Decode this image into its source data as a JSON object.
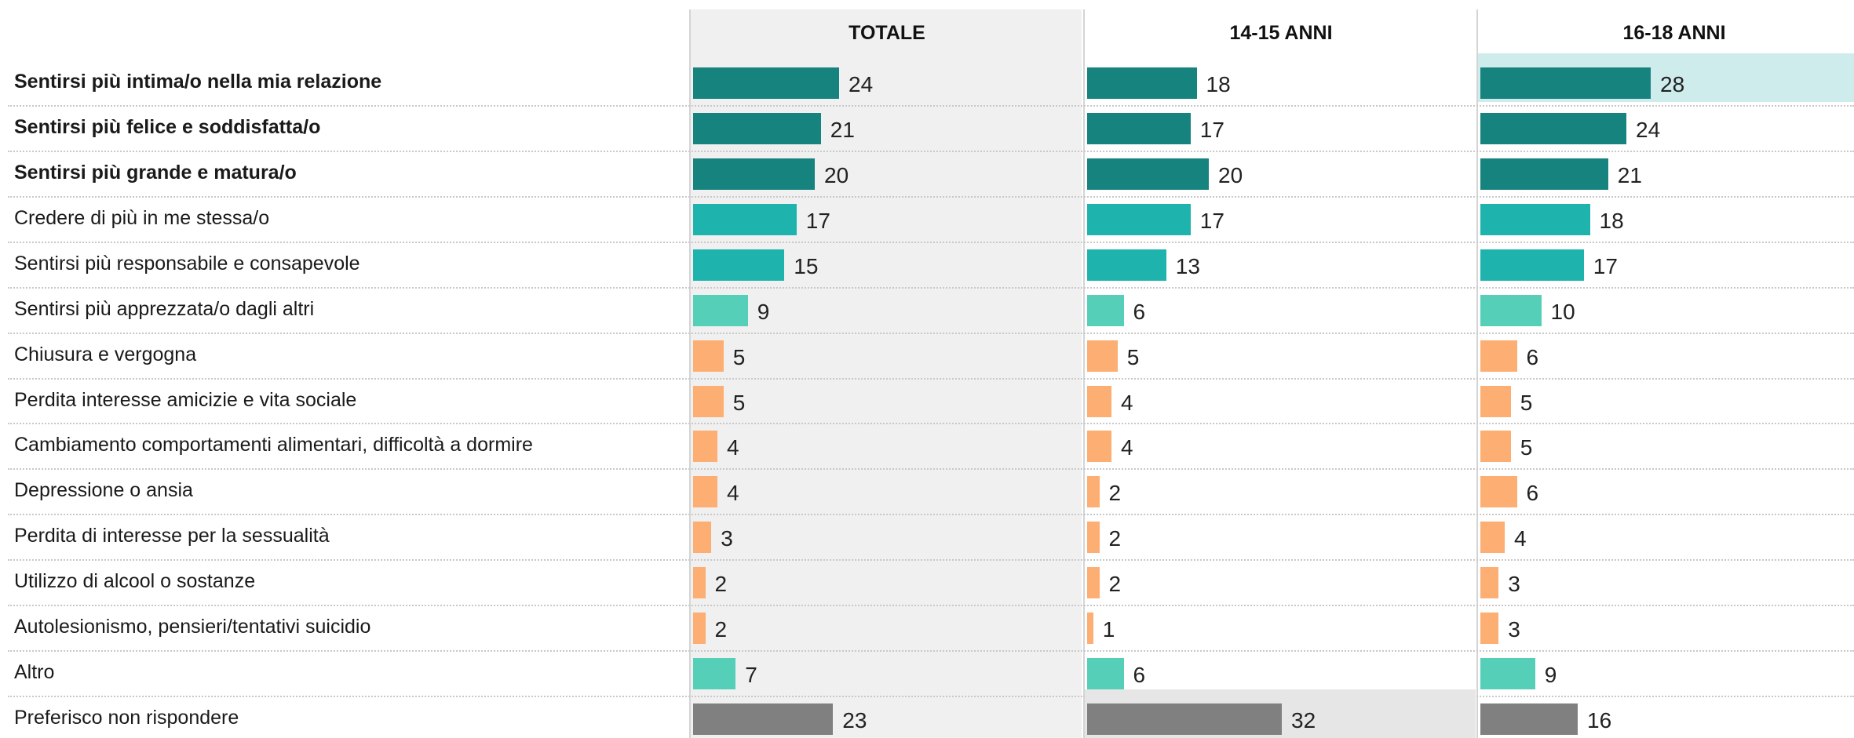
{
  "colors": {
    "strong_positive": "#17837e",
    "positive": "#1fb3ae",
    "light_positive": "#55cfb8",
    "negative": "#fdae72",
    "no_answer": "#808080",
    "total_column_bg": "#f0f0f0",
    "highlight_max": "#cfeced",
    "highlight_grey": "#e6e6e6"
  },
  "chart_data": {
    "type": "bar",
    "orientation": "horizontal",
    "columns": [
      "TOTALE",
      "14-15 ANNI",
      "16-18 ANNI"
    ],
    "categories": [
      {
        "label": "Sentirsi più intima/o nella mia relazione",
        "bold": true,
        "values": [
          24,
          18,
          28
        ],
        "color": "strong_positive",
        "highlight": [
          null,
          null,
          "highlight_max"
        ]
      },
      {
        "label": "Sentirsi più felice e soddisfatta/o",
        "bold": true,
        "values": [
          21,
          17,
          24
        ],
        "color": "strong_positive",
        "highlight": [
          null,
          null,
          null
        ]
      },
      {
        "label": "Sentirsi più grande e matura/o",
        "bold": true,
        "values": [
          20,
          20,
          21
        ],
        "color": "strong_positive",
        "highlight": [
          null,
          null,
          null
        ]
      },
      {
        "label": "Credere di più in me stessa/o",
        "bold": false,
        "values": [
          17,
          17,
          18
        ],
        "color": "positive",
        "highlight": [
          null,
          null,
          null
        ]
      },
      {
        "label": "Sentirsi più responsabile e consapevole",
        "bold": false,
        "values": [
          15,
          13,
          17
        ],
        "color": "positive",
        "highlight": [
          null,
          null,
          null
        ]
      },
      {
        "label": "Sentirsi più apprezzata/o dagli altri",
        "bold": false,
        "values": [
          9,
          6,
          10
        ],
        "color": "light_positive",
        "highlight": [
          null,
          null,
          null
        ]
      },
      {
        "label": "Chiusura e vergogna",
        "bold": false,
        "values": [
          5,
          5,
          6
        ],
        "color": "negative",
        "highlight": [
          null,
          null,
          null
        ]
      },
      {
        "label": "Perdita interesse amicizie e vita sociale",
        "bold": false,
        "values": [
          5,
          4,
          5
        ],
        "color": "negative",
        "highlight": [
          null,
          null,
          null
        ]
      },
      {
        "label": "Cambiamento comportamenti alimentari, difficoltà a dormire",
        "bold": false,
        "values": [
          4,
          4,
          5
        ],
        "color": "negative",
        "highlight": [
          null,
          null,
          null
        ]
      },
      {
        "label": "Depressione o ansia",
        "bold": false,
        "values": [
          4,
          2,
          6
        ],
        "color": "negative",
        "highlight": [
          null,
          null,
          null
        ]
      },
      {
        "label": "Perdita di interesse per la sessualità",
        "bold": false,
        "values": [
          3,
          2,
          4
        ],
        "color": "negative",
        "highlight": [
          null,
          null,
          null
        ]
      },
      {
        "label": "Utilizzo di alcool o sostanze",
        "bold": false,
        "values": [
          2,
          2,
          3
        ],
        "color": "negative",
        "highlight": [
          null,
          null,
          null
        ]
      },
      {
        "label": "Autolesionismo, pensieri/tentativi suicidio",
        "bold": false,
        "values": [
          2,
          1,
          3
        ],
        "color": "negative",
        "highlight": [
          null,
          null,
          null
        ]
      },
      {
        "label": "Altro",
        "bold": false,
        "values": [
          7,
          6,
          9
        ],
        "color": "light_positive",
        "highlight": [
          null,
          null,
          null
        ]
      },
      {
        "label": "Preferisco non rispondere",
        "bold": false,
        "values": [
          23,
          32,
          16
        ],
        "color": "no_answer",
        "highlight": [
          null,
          "highlight_grey",
          null
        ]
      }
    ],
    "xlim": [
      0,
      100
    ],
    "grid": false,
    "legend": "none"
  }
}
